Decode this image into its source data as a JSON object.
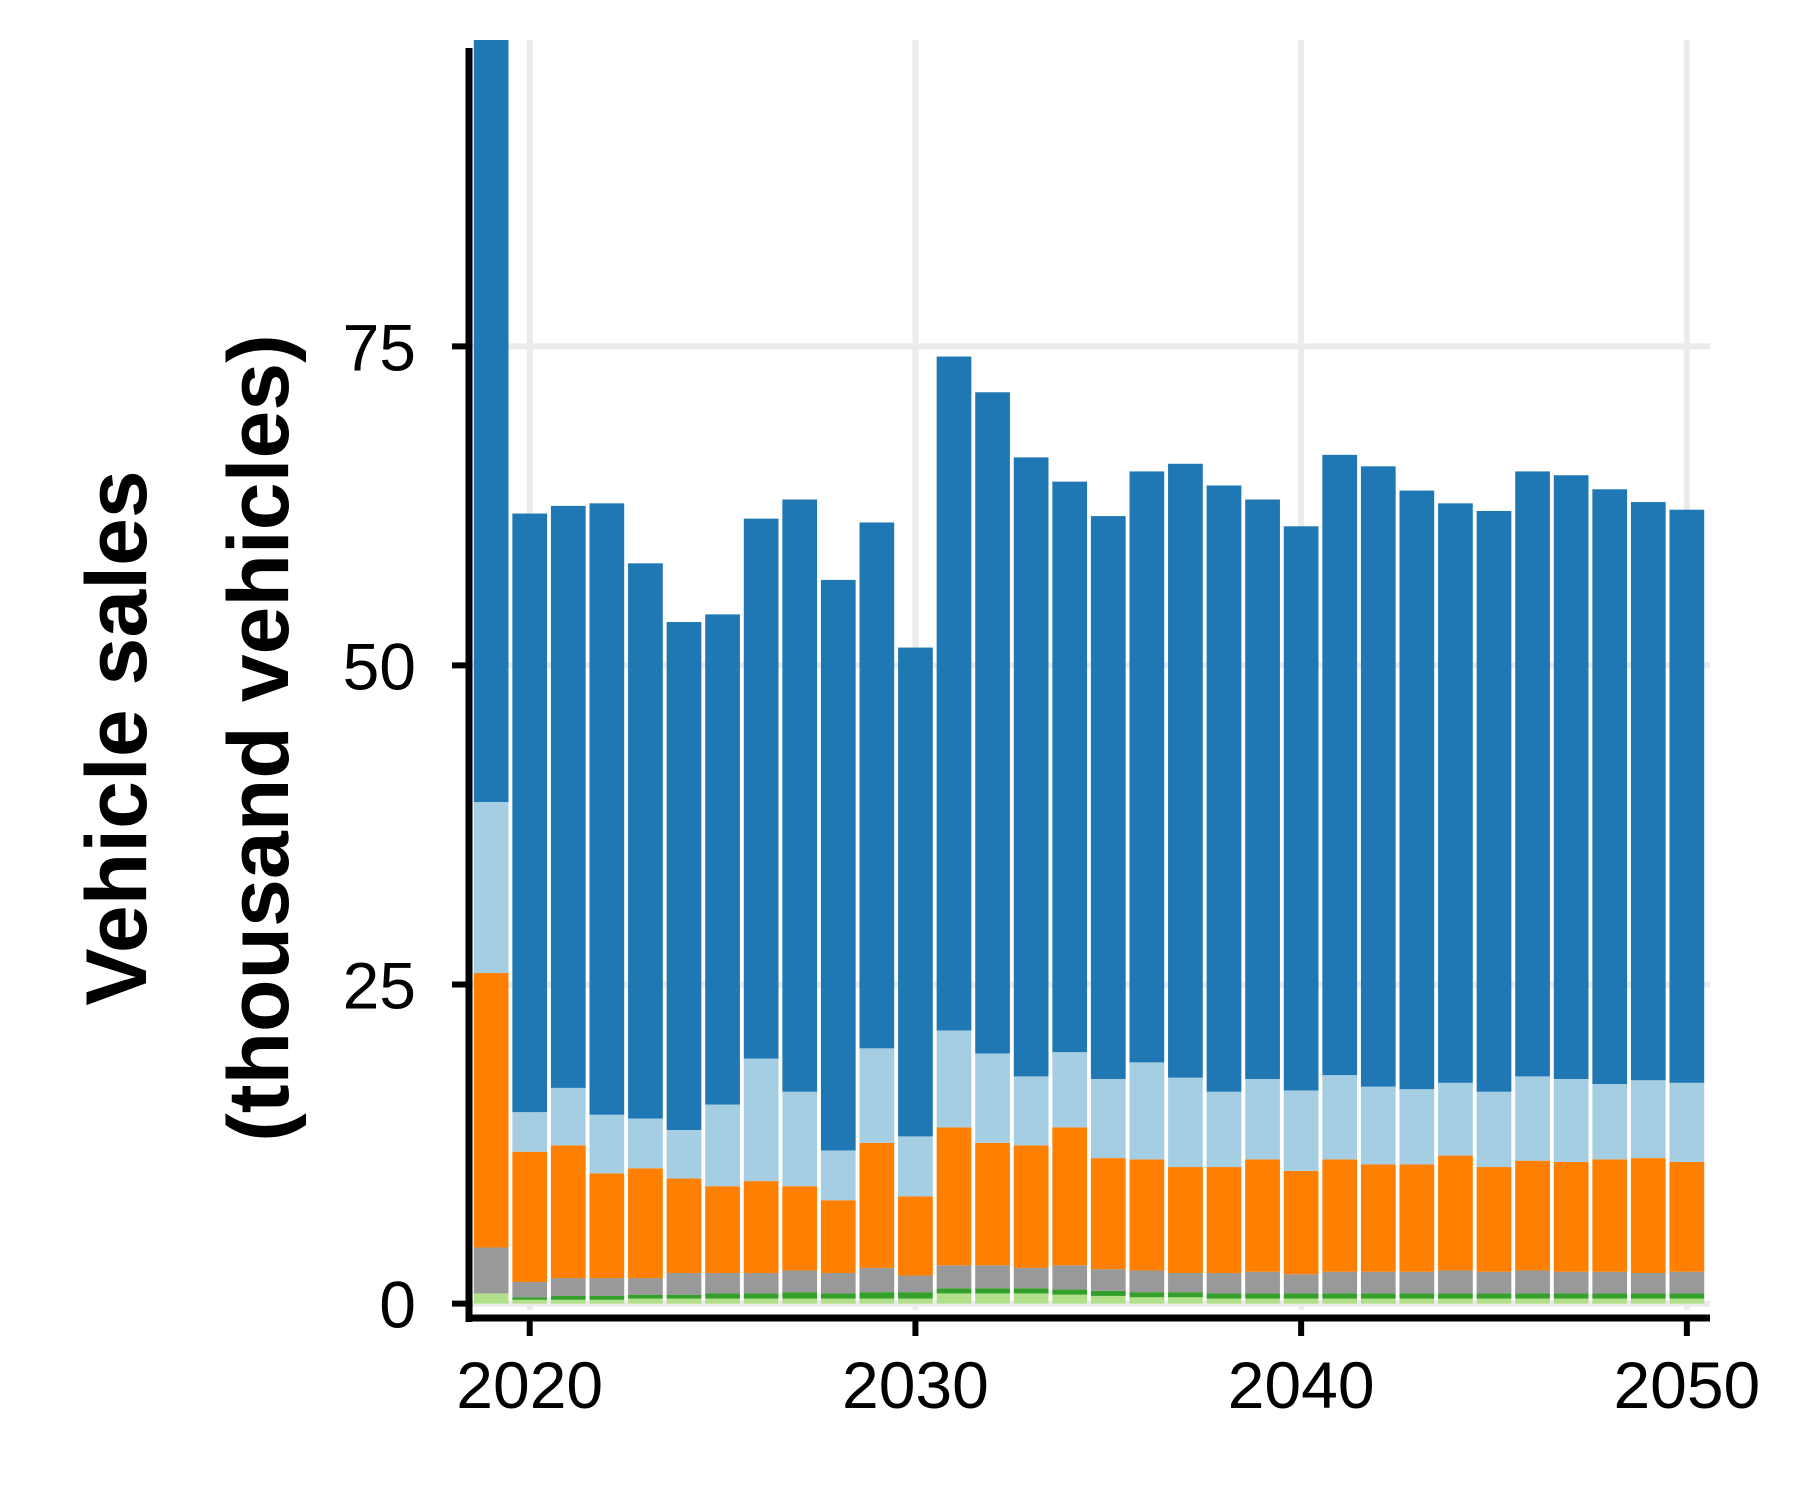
{
  "chart_data": {
    "type": "bar",
    "stacked": true,
    "title": "",
    "xlabel": "",
    "ylabel_lines": [
      "Vehicle sales",
      "(thousand vehicles)"
    ],
    "xlim": [
      2018.4,
      2050.6
    ],
    "ylim": [
      -0.5,
      99
    ],
    "x_ticks": [
      2020,
      2030,
      2040,
      2050
    ],
    "y_ticks": [
      0,
      25,
      50,
      75
    ],
    "grid": true,
    "legend": "none",
    "categories": [
      2019,
      2020,
      2021,
      2022,
      2023,
      2024,
      2025,
      2026,
      2027,
      2028,
      2029,
      2030,
      2031,
      2032,
      2033,
      2034,
      2035,
      2036,
      2037,
      2038,
      2039,
      2040,
      2041,
      2042,
      2043,
      2044,
      2045,
      2046,
      2047,
      2048,
      2049,
      2050
    ],
    "series": [
      {
        "color": "#b2df8a",
        "values": [
          0.8,
          0.3,
          0.3,
          0.3,
          0.4,
          0.4,
          0.4,
          0.4,
          0.4,
          0.4,
          0.4,
          0.4,
          0.8,
          0.8,
          0.8,
          0.7,
          0.6,
          0.5,
          0.5,
          0.4,
          0.4,
          0.4,
          0.4,
          0.4,
          0.4,
          0.4,
          0.4,
          0.4,
          0.4,
          0.4,
          0.4,
          0.4
        ]
      },
      {
        "color": "#33a02c",
        "values": [
          0.0,
          0.2,
          0.3,
          0.3,
          0.3,
          0.3,
          0.4,
          0.4,
          0.5,
          0.4,
          0.5,
          0.5,
          0.4,
          0.4,
          0.4,
          0.4,
          0.4,
          0.4,
          0.4,
          0.4,
          0.4,
          0.4,
          0.4,
          0.4,
          0.4,
          0.4,
          0.4,
          0.4,
          0.4,
          0.4,
          0.4,
          0.4
        ]
      },
      {
        "color": "#999999",
        "values": [
          3.6,
          1.2,
          1.4,
          1.4,
          1.3,
          1.7,
          1.6,
          1.6,
          1.7,
          1.6,
          1.9,
          1.3,
          1.8,
          1.8,
          1.6,
          1.9,
          1.7,
          1.7,
          1.5,
          1.6,
          1.7,
          1.5,
          1.7,
          1.7,
          1.7,
          1.8,
          1.7,
          1.8,
          1.7,
          1.7,
          1.6,
          1.7
        ]
      },
      {
        "color": "#ff7f00",
        "values": [
          21.5,
          10.2,
          10.4,
          8.2,
          8.6,
          7.4,
          6.8,
          7.2,
          6.6,
          5.7,
          9.8,
          6.2,
          10.8,
          9.6,
          9.6,
          10.8,
          8.7,
          8.7,
          8.3,
          8.3,
          8.8,
          8.1,
          8.8,
          8.4,
          8.4,
          9.0,
          8.2,
          8.6,
          8.6,
          8.8,
          9.0,
          8.6
        ]
      },
      {
        "color": "#a6cee3",
        "values": [
          13.4,
          3.1,
          4.5,
          4.6,
          3.9,
          3.8,
          6.4,
          9.6,
          7.4,
          3.9,
          7.4,
          4.7,
          7.6,
          7.0,
          5.4,
          5.9,
          6.2,
          7.6,
          7.0,
          5.9,
          6.3,
          6.3,
          6.6,
          6.1,
          5.9,
          5.7,
          5.9,
          6.6,
          6.5,
          5.9,
          6.1,
          6.2
        ]
      },
      {
        "color": "#1f78b4",
        "values": [
          59.7,
          46.9,
          45.6,
          47.9,
          43.5,
          39.8,
          38.4,
          42.3,
          46.4,
          44.7,
          41.2,
          38.3,
          52.8,
          51.8,
          48.5,
          44.7,
          44.1,
          46.3,
          48.1,
          47.5,
          45.4,
          44.2,
          48.6,
          48.6,
          46.9,
          45.4,
          45.5,
          47.4,
          47.3,
          46.6,
          45.3,
          44.9
        ]
      }
    ]
  }
}
